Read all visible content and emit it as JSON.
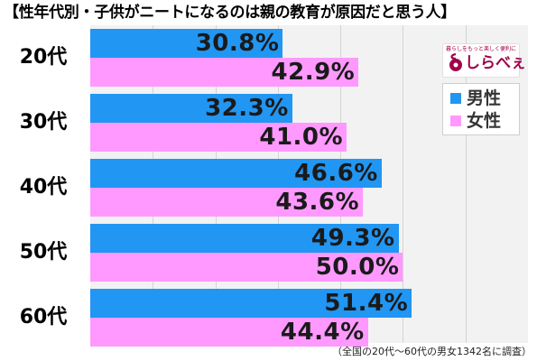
{
  "title": "【性年代別・子供がニートになるのは親の教育が原因だと思う人】",
  "chart_data": {
    "type": "bar",
    "orientation": "horizontal",
    "categories": [
      "20代",
      "30代",
      "40代",
      "50代",
      "60代"
    ],
    "series": [
      {
        "name": "男性",
        "color": "#2196f3",
        "values": [
          30.8,
          32.3,
          46.6,
          49.3,
          51.4
        ]
      },
      {
        "name": "女性",
        "color": "#ff99ff",
        "values": [
          42.9,
          41.0,
          43.6,
          50.0,
          44.4
        ]
      }
    ],
    "value_labels": {
      "男性": [
        "30.8%",
        "32.3%",
        "46.6%",
        "49.3%",
        "51.4%"
      ],
      "女性": [
        "42.9%",
        "41.0%",
        "43.6%",
        "50.0%",
        "44.4%"
      ]
    },
    "xlim": [
      0,
      70
    ],
    "grid": true,
    "legend_position": "top-right"
  },
  "legend": {
    "male_label": "男性",
    "female_label": "女性"
  },
  "logo": {
    "tagline": "暮らしをもっと楽しく便利に",
    "text": "しらべぇ",
    "color": "#a0004a"
  },
  "footnote": "（全国の20代～60代の男女1342名に調査）"
}
